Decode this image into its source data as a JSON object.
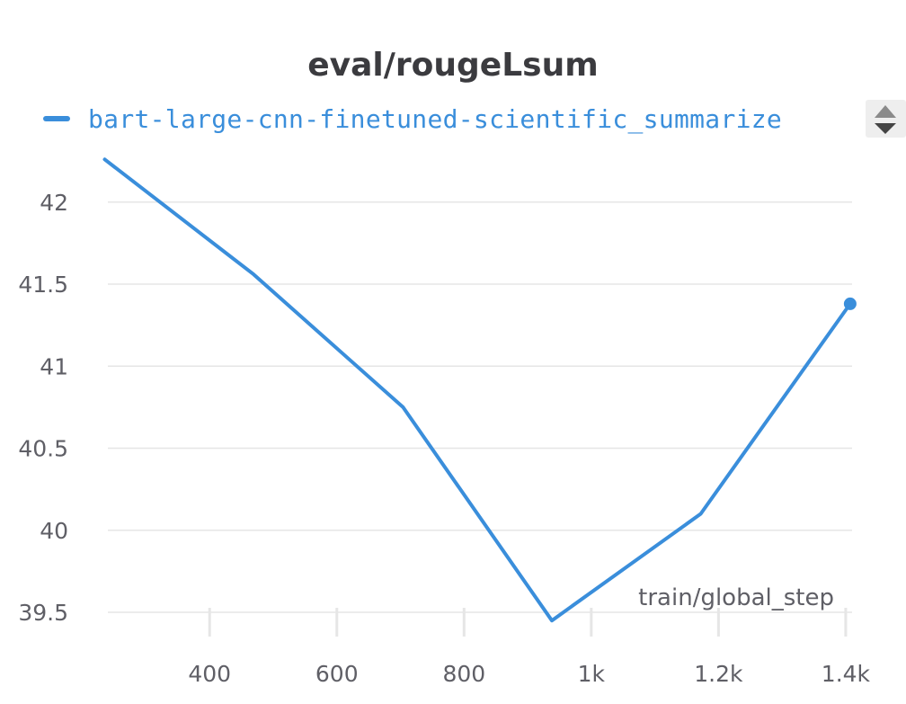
{
  "chart_data": {
    "type": "line",
    "title": "eval/rougeLsum",
    "xlabel": "train/global_step",
    "ylabel": "",
    "xlim": [
      240,
      1410
    ],
    "ylim": [
      39.44,
      42.3
    ],
    "x_ticks": [
      400,
      600,
      800,
      1000,
      1200,
      1400
    ],
    "x_tick_labels": [
      "400",
      "600",
      "800",
      "1k",
      "1.2k",
      "1.4k"
    ],
    "y_ticks": [
      39.5,
      40,
      40.5,
      41,
      41.5,
      42
    ],
    "y_tick_labels": [
      "39.5",
      "40",
      "40.5",
      "41",
      "41.5",
      "42"
    ],
    "grid": "horizontal",
    "legend_position": "top-left",
    "series": [
      {
        "name": "bart-large-cnn-finetuned-scientific_summarize",
        "color": "#3a8edb",
        "x": [
          235,
          469,
          704,
          938,
          1172,
          1407
        ],
        "y": [
          42.26,
          41.56,
          40.75,
          39.45,
          40.1,
          41.38
        ]
      }
    ]
  },
  "legend_scroll_icon": "sort-arrows-icon",
  "colors": {
    "text": "#5f5f66",
    "title": "#3b3b3f",
    "grid": "#e6e6e6",
    "series": "#3a8edb"
  }
}
